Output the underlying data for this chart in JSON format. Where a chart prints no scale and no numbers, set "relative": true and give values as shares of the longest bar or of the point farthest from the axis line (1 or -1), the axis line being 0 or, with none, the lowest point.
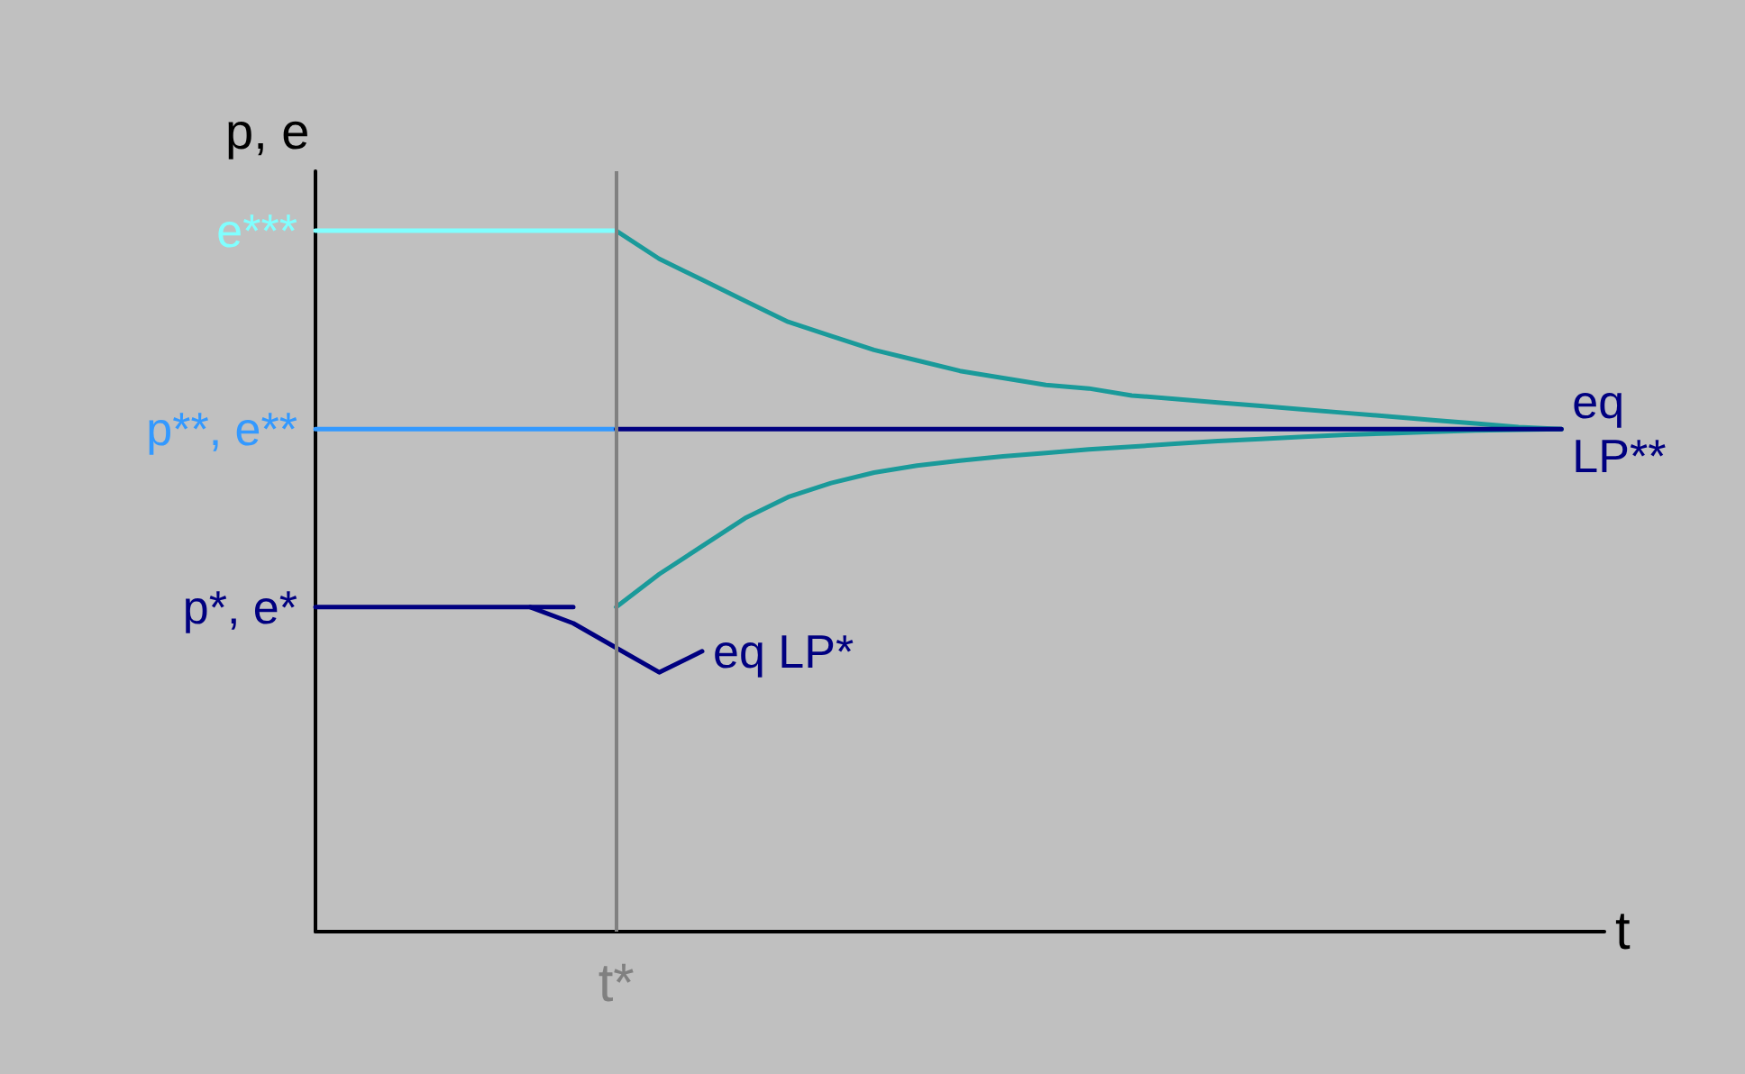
{
  "chart_data": {
    "type": "line",
    "relative": true,
    "xlabel": "t",
    "ylabel": "p, e",
    "grid": false,
    "marker": "none",
    "line_style": "solid",
    "categories": [
      null,
      null,
      null,
      null,
      null,
      null,
      null,
      null,
      null,
      null,
      null,
      null,
      null,
      null,
      null,
      null,
      null,
      null,
      null,
      null,
      null,
      null,
      null,
      null,
      null,
      null,
      null,
      null,
      null,
      null,
      null
    ],
    "annotations": [
      "t*"
    ],
    "series": [
      {
        "name": "e***",
        "color": "#80ffff",
        "values": [
          1,
          1,
          1,
          1,
          1,
          1,
          1,
          1,
          null,
          null,
          null,
          null,
          null,
          null,
          null,
          null,
          null,
          null,
          null,
          null,
          null,
          null,
          null,
          null,
          null,
          null,
          null,
          null,
          null,
          null,
          null
        ]
      },
      {
        "name": "p**, e**",
        "color": "#3399ff",
        "values": [
          0.717,
          0.717,
          0.717,
          0.717,
          0.717,
          0.717,
          0.717,
          0.717,
          null,
          null,
          null,
          null,
          null,
          null,
          null,
          null,
          null,
          null,
          null,
          null,
          null,
          null,
          null,
          null,
          null,
          null,
          null,
          null,
          null,
          null,
          null
        ]
      },
      {
        "name": "p*, e*",
        "color": "#000080",
        "values": [
          0.463,
          0.463,
          0.463,
          0.463,
          0.463,
          0.463,
          0.463,
          null,
          null,
          null,
          null,
          null,
          null,
          null,
          null,
          null,
          null,
          null,
          null,
          null,
          null,
          null,
          null,
          null,
          null,
          null,
          null,
          null,
          null,
          null,
          null
        ]
      },
      {
        "name": "eq LP**",
        "color": "#000080",
        "values": [
          null,
          null,
          null,
          null,
          null,
          null,
          null,
          0.717,
          0.717,
          0.717,
          0.717,
          0.717,
          0.717,
          0.717,
          0.717,
          0.717,
          0.717,
          0.717,
          0.717,
          0.717,
          0.717,
          0.717,
          0.717,
          0.717,
          0.717,
          0.717,
          0.717,
          0.717,
          0.717,
          0.717,
          null
        ]
      },
      {
        "color": "#1a9a9a",
        "values": [
          null,
          null,
          null,
          null,
          null,
          null,
          null,
          1,
          0.96,
          0.93,
          0.9,
          0.87,
          0.85,
          0.83,
          0.815,
          0.8,
          0.79,
          0.78,
          0.775,
          0.765,
          0.76,
          0.755,
          0.75,
          0.745,
          0.74,
          0.735,
          0.73,
          0.725,
          0.72,
          0.717,
          null
        ]
      },
      {
        "color": "#1a9a9a",
        "values": [
          null,
          null,
          null,
          null,
          null,
          null,
          null,
          0.463,
          0.51,
          0.55,
          0.59,
          0.62,
          0.64,
          0.655,
          0.665,
          0.672,
          0.678,
          0.683,
          0.688,
          0.692,
          0.696,
          0.7,
          0.703,
          0.706,
          0.709,
          0.711,
          0.713,
          0.715,
          0.716,
          0.717,
          null
        ]
      },
      {
        "name": "eq LP*",
        "color": "#000080",
        "values": [
          null,
          null,
          null,
          null,
          null,
          0.463,
          0.44,
          0.405,
          0.37,
          0.4,
          null,
          null,
          null,
          null,
          null,
          null,
          null,
          null,
          null,
          null,
          null,
          null,
          null,
          null,
          null,
          null,
          null,
          null,
          null,
          null,
          null
        ]
      }
    ]
  }
}
